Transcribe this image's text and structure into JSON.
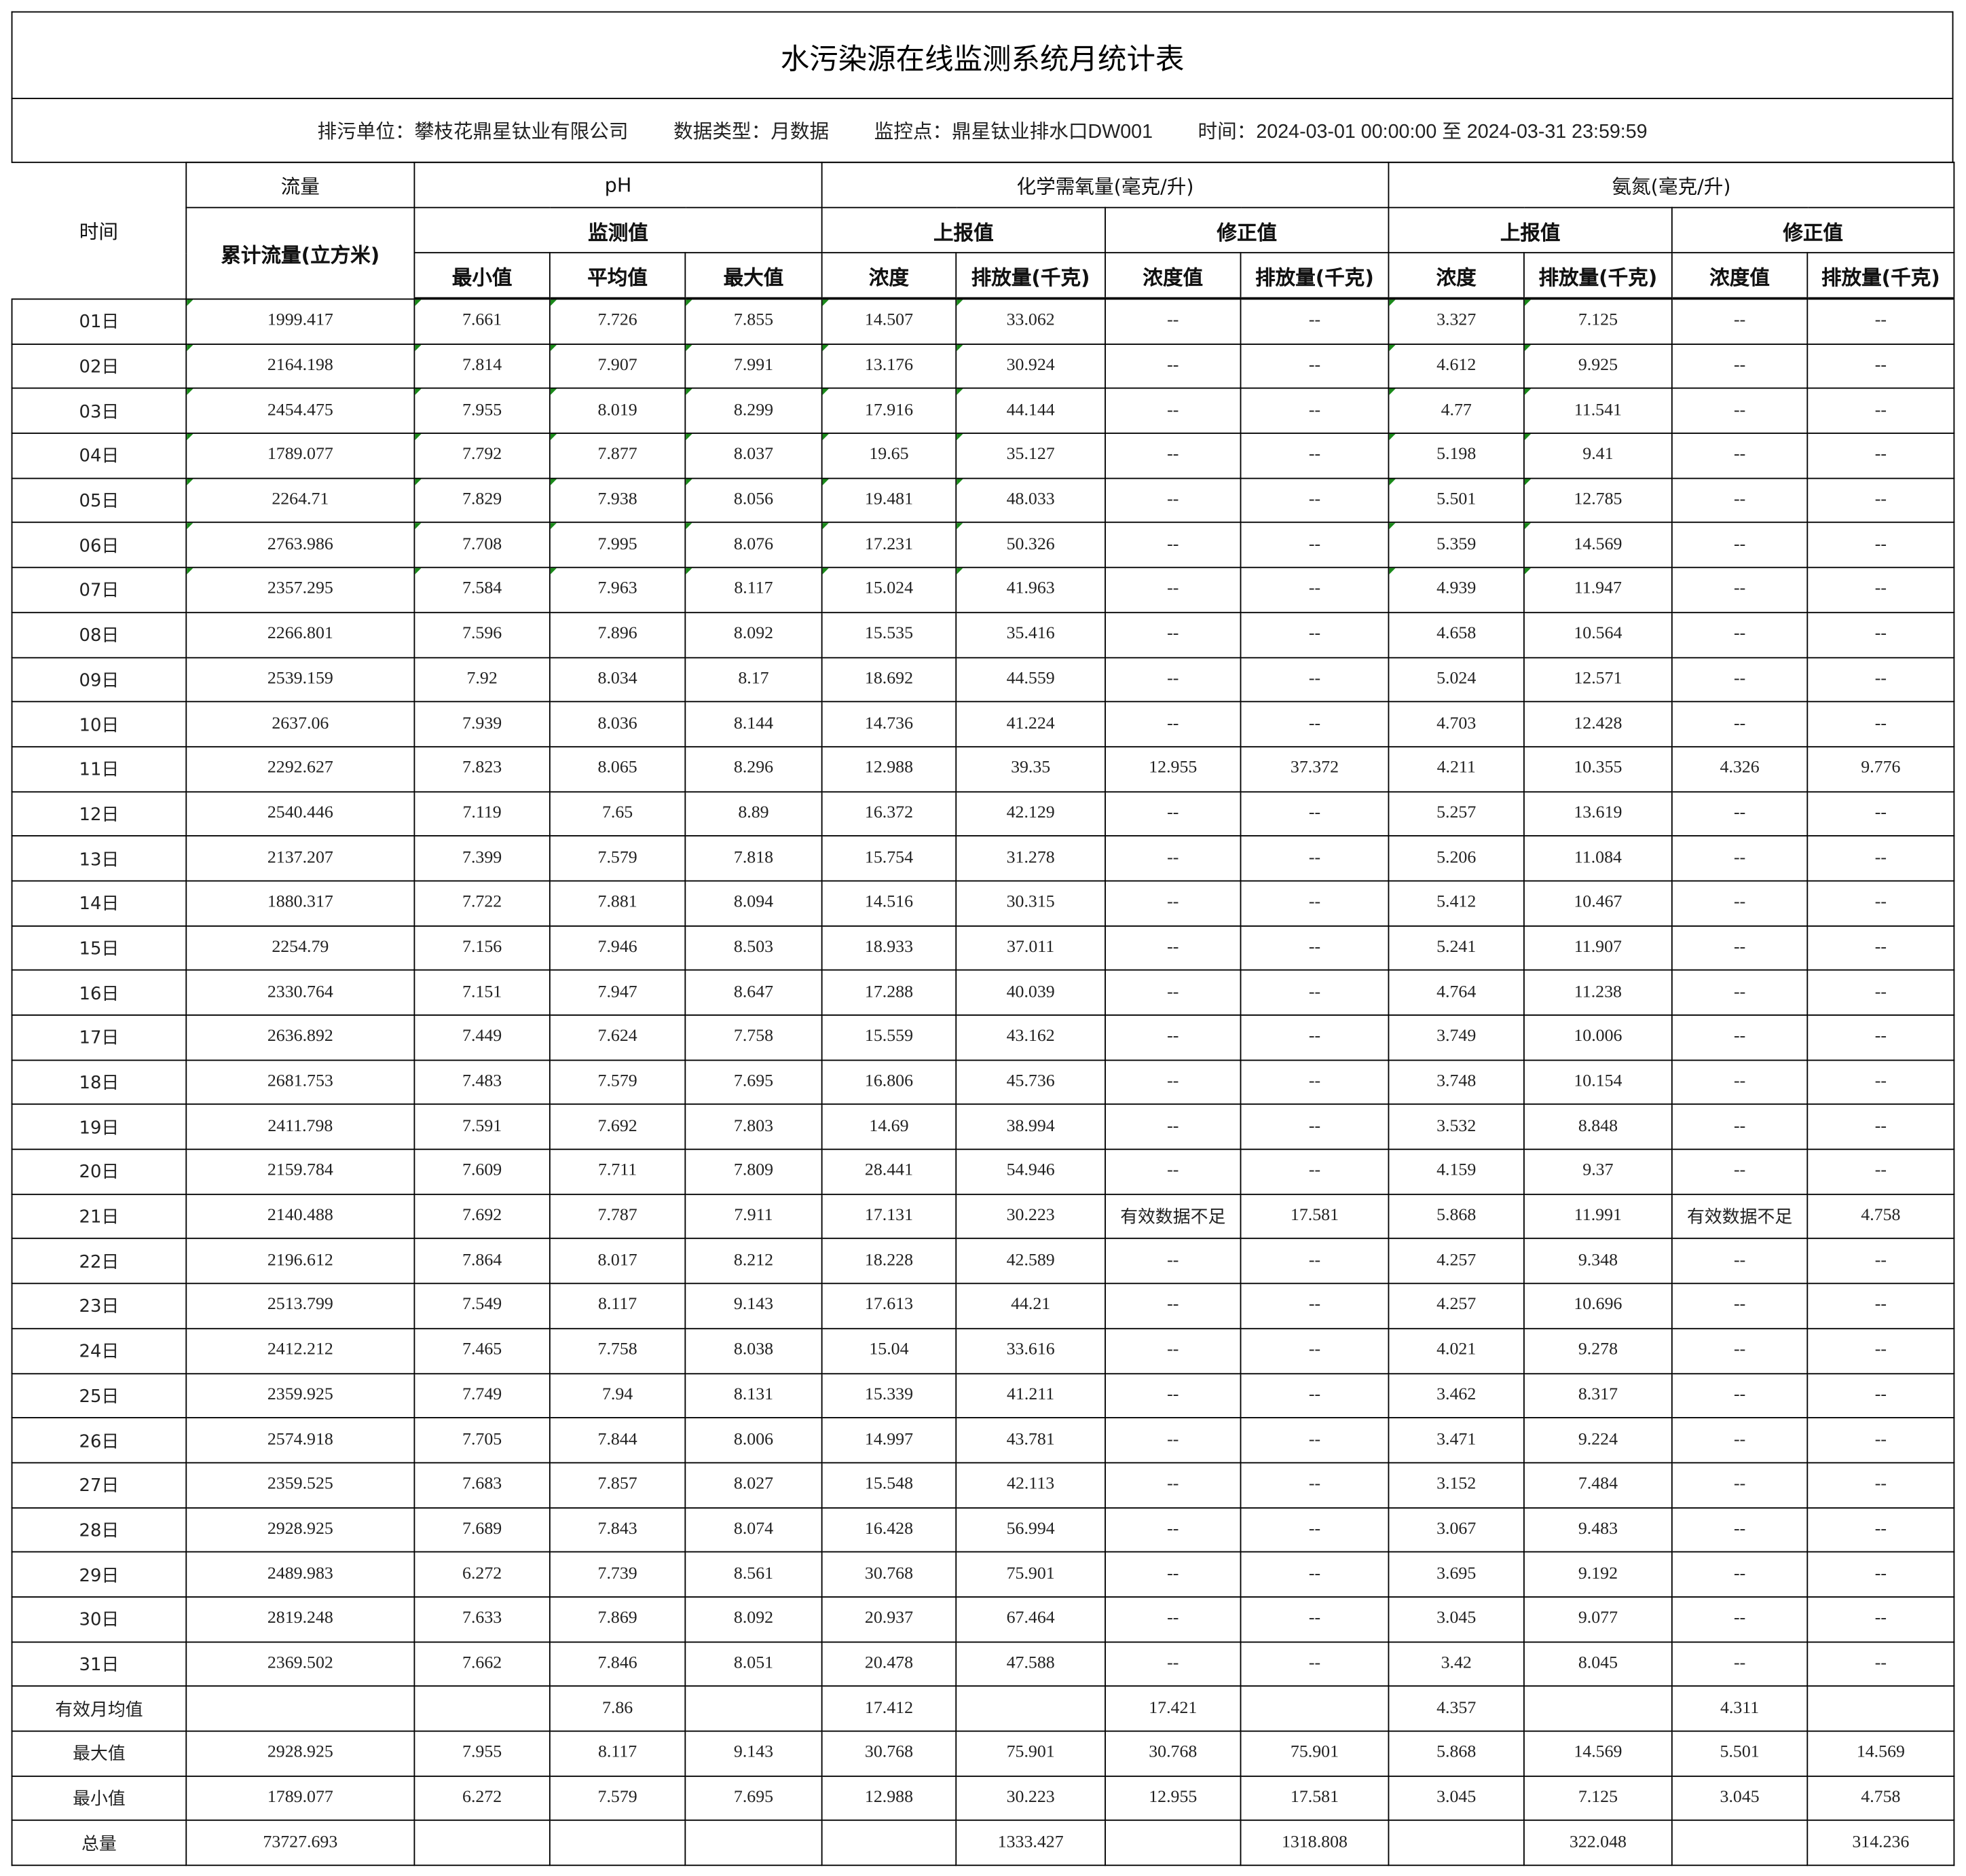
{
  "title": "水污染源在线监测系统月统计表",
  "info": {
    "unit_label": "排污单位：",
    "unit_value": "攀枝花鼎星钛业有限公司",
    "type_label": "数据类型：",
    "type_value": "月数据",
    "point_label": "监控点：",
    "point_value": "鼎星钛业排水口DW001",
    "time_label": "时间：",
    "time_value": "2024-03-01 00:00:00 至 2024-03-31 23:59:59"
  },
  "header": {
    "time": "时间",
    "flow": "流量",
    "ph": "pH",
    "cod": "化学需氧量(毫克/升)",
    "nh3": "氨氮(毫克/升)",
    "flow_total": "累计流量(立方米)",
    "monitor": "监测值",
    "reported": "上报值",
    "corrected": "修正值",
    "min": "最小值",
    "avg": "平均值",
    "max": "最大值",
    "conc": "浓度",
    "emission": "排放量(千克)",
    "conc_value": "浓度值"
  },
  "rows": [
    [
      "01日",
      "1999.417",
      "7.661",
      "7.726",
      "7.855",
      "14.507",
      "33.062",
      "--",
      "--",
      "3.327",
      "7.125",
      "--",
      "--"
    ],
    [
      "02日",
      "2164.198",
      "7.814",
      "7.907",
      "7.991",
      "13.176",
      "30.924",
      "--",
      "--",
      "4.612",
      "9.925",
      "--",
      "--"
    ],
    [
      "03日",
      "2454.475",
      "7.955",
      "8.019",
      "8.299",
      "17.916",
      "44.144",
      "--",
      "--",
      "4.77",
      "11.541",
      "--",
      "--"
    ],
    [
      "04日",
      "1789.077",
      "7.792",
      "7.877",
      "8.037",
      "19.65",
      "35.127",
      "--",
      "--",
      "5.198",
      "9.41",
      "--",
      "--"
    ],
    [
      "05日",
      "2264.71",
      "7.829",
      "7.938",
      "8.056",
      "19.481",
      "48.033",
      "--",
      "--",
      "5.501",
      "12.785",
      "--",
      "--"
    ],
    [
      "06日",
      "2763.986",
      "7.708",
      "7.995",
      "8.076",
      "17.231",
      "50.326",
      "--",
      "--",
      "5.359",
      "14.569",
      "--",
      "--"
    ],
    [
      "07日",
      "2357.295",
      "7.584",
      "7.963",
      "8.117",
      "15.024",
      "41.963",
      "--",
      "--",
      "4.939",
      "11.947",
      "--",
      "--"
    ],
    [
      "08日",
      "2266.801",
      "7.596",
      "7.896",
      "8.092",
      "15.535",
      "35.416",
      "--",
      "--",
      "4.658",
      "10.564",
      "--",
      "--"
    ],
    [
      "09日",
      "2539.159",
      "7.92",
      "8.034",
      "8.17",
      "18.692",
      "44.559",
      "--",
      "--",
      "5.024",
      "12.571",
      "--",
      "--"
    ],
    [
      "10日",
      "2637.06",
      "7.939",
      "8.036",
      "8.144",
      "14.736",
      "41.224",
      "--",
      "--",
      "4.703",
      "12.428",
      "--",
      "--"
    ],
    [
      "11日",
      "2292.627",
      "7.823",
      "8.065",
      "8.296",
      "12.988",
      "39.35",
      "12.955",
      "37.372",
      "4.211",
      "10.355",
      "4.326",
      "9.776"
    ],
    [
      "12日",
      "2540.446",
      "7.119",
      "7.65",
      "8.89",
      "16.372",
      "42.129",
      "--",
      "--",
      "5.257",
      "13.619",
      "--",
      "--"
    ],
    [
      "13日",
      "2137.207",
      "7.399",
      "7.579",
      "7.818",
      "15.754",
      "31.278",
      "--",
      "--",
      "5.206",
      "11.084",
      "--",
      "--"
    ],
    [
      "14日",
      "1880.317",
      "7.722",
      "7.881",
      "8.094",
      "14.516",
      "30.315",
      "--",
      "--",
      "5.412",
      "10.467",
      "--",
      "--"
    ],
    [
      "15日",
      "2254.79",
      "7.156",
      "7.946",
      "8.503",
      "18.933",
      "37.011",
      "--",
      "--",
      "5.241",
      "11.907",
      "--",
      "--"
    ],
    [
      "16日",
      "2330.764",
      "7.151",
      "7.947",
      "8.647",
      "17.288",
      "40.039",
      "--",
      "--",
      "4.764",
      "11.238",
      "--",
      "--"
    ],
    [
      "17日",
      "2636.892",
      "7.449",
      "7.624",
      "7.758",
      "15.559",
      "43.162",
      "--",
      "--",
      "3.749",
      "10.006",
      "--",
      "--"
    ],
    [
      "18日",
      "2681.753",
      "7.483",
      "7.579",
      "7.695",
      "16.806",
      "45.736",
      "--",
      "--",
      "3.748",
      "10.154",
      "--",
      "--"
    ],
    [
      "19日",
      "2411.798",
      "7.591",
      "7.692",
      "7.803",
      "14.69",
      "38.994",
      "--",
      "--",
      "3.532",
      "8.848",
      "--",
      "--"
    ],
    [
      "20日",
      "2159.784",
      "7.609",
      "7.711",
      "7.809",
      "28.441",
      "54.946",
      "--",
      "--",
      "4.159",
      "9.37",
      "--",
      "--"
    ],
    [
      "21日",
      "2140.488",
      "7.692",
      "7.787",
      "7.911",
      "17.131",
      "30.223",
      "有效数据不足",
      "17.581",
      "5.868",
      "11.991",
      "有效数据不足",
      "4.758"
    ],
    [
      "22日",
      "2196.612",
      "7.864",
      "8.017",
      "8.212",
      "18.228",
      "42.589",
      "--",
      "--",
      "4.257",
      "9.348",
      "--",
      "--"
    ],
    [
      "23日",
      "2513.799",
      "7.549",
      "8.117",
      "9.143",
      "17.613",
      "44.21",
      "--",
      "--",
      "4.257",
      "10.696",
      "--",
      "--"
    ],
    [
      "24日",
      "2412.212",
      "7.465",
      "7.758",
      "8.038",
      "15.04",
      "33.616",
      "--",
      "--",
      "4.021",
      "9.278",
      "--",
      "--"
    ],
    [
      "25日",
      "2359.925",
      "7.749",
      "7.94",
      "8.131",
      "15.339",
      "41.211",
      "--",
      "--",
      "3.462",
      "8.317",
      "--",
      "--"
    ],
    [
      "26日",
      "2574.918",
      "7.705",
      "7.844",
      "8.006",
      "14.997",
      "43.781",
      "--",
      "--",
      "3.471",
      "9.224",
      "--",
      "--"
    ],
    [
      "27日",
      "2359.525",
      "7.683",
      "7.857",
      "8.027",
      "15.548",
      "42.113",
      "--",
      "--",
      "3.152",
      "7.484",
      "--",
      "--"
    ],
    [
      "28日",
      "2928.925",
      "7.689",
      "7.843",
      "8.074",
      "16.428",
      "56.994",
      "--",
      "--",
      "3.067",
      "9.483",
      "--",
      "--"
    ],
    [
      "29日",
      "2489.983",
      "6.272",
      "7.739",
      "8.561",
      "30.768",
      "75.901",
      "--",
      "--",
      "3.695",
      "9.192",
      "--",
      "--"
    ],
    [
      "30日",
      "2819.248",
      "7.633",
      "7.869",
      "8.092",
      "20.937",
      "67.464",
      "--",
      "--",
      "3.045",
      "9.077",
      "--",
      "--"
    ],
    [
      "31日",
      "2369.502",
      "7.662",
      "7.846",
      "8.051",
      "20.478",
      "47.588",
      "--",
      "--",
      "3.42",
      "8.045",
      "--",
      "--"
    ]
  ],
  "summary": [
    [
      "有效月均值",
      "",
      "",
      "7.86",
      "",
      "17.412",
      "",
      "17.421",
      "",
      "4.357",
      "",
      "4.311",
      ""
    ],
    [
      "最大值",
      "2928.925",
      "7.955",
      "8.117",
      "9.143",
      "30.768",
      "75.901",
      "30.768",
      "75.901",
      "5.868",
      "14.569",
      "5.501",
      "14.569"
    ],
    [
      "最小值",
      "1789.077",
      "6.272",
      "7.579",
      "7.695",
      "12.988",
      "30.223",
      "12.955",
      "17.581",
      "3.045",
      "7.125",
      "3.045",
      "4.758"
    ],
    [
      "总量",
      "73727.693",
      "",
      "",
      "",
      "",
      "1333.427",
      "",
      "1318.808",
      "",
      "322.048",
      "",
      "314.236"
    ]
  ],
  "colors": {
    "border": "#000000",
    "error_marker": "#1a8a1a"
  }
}
